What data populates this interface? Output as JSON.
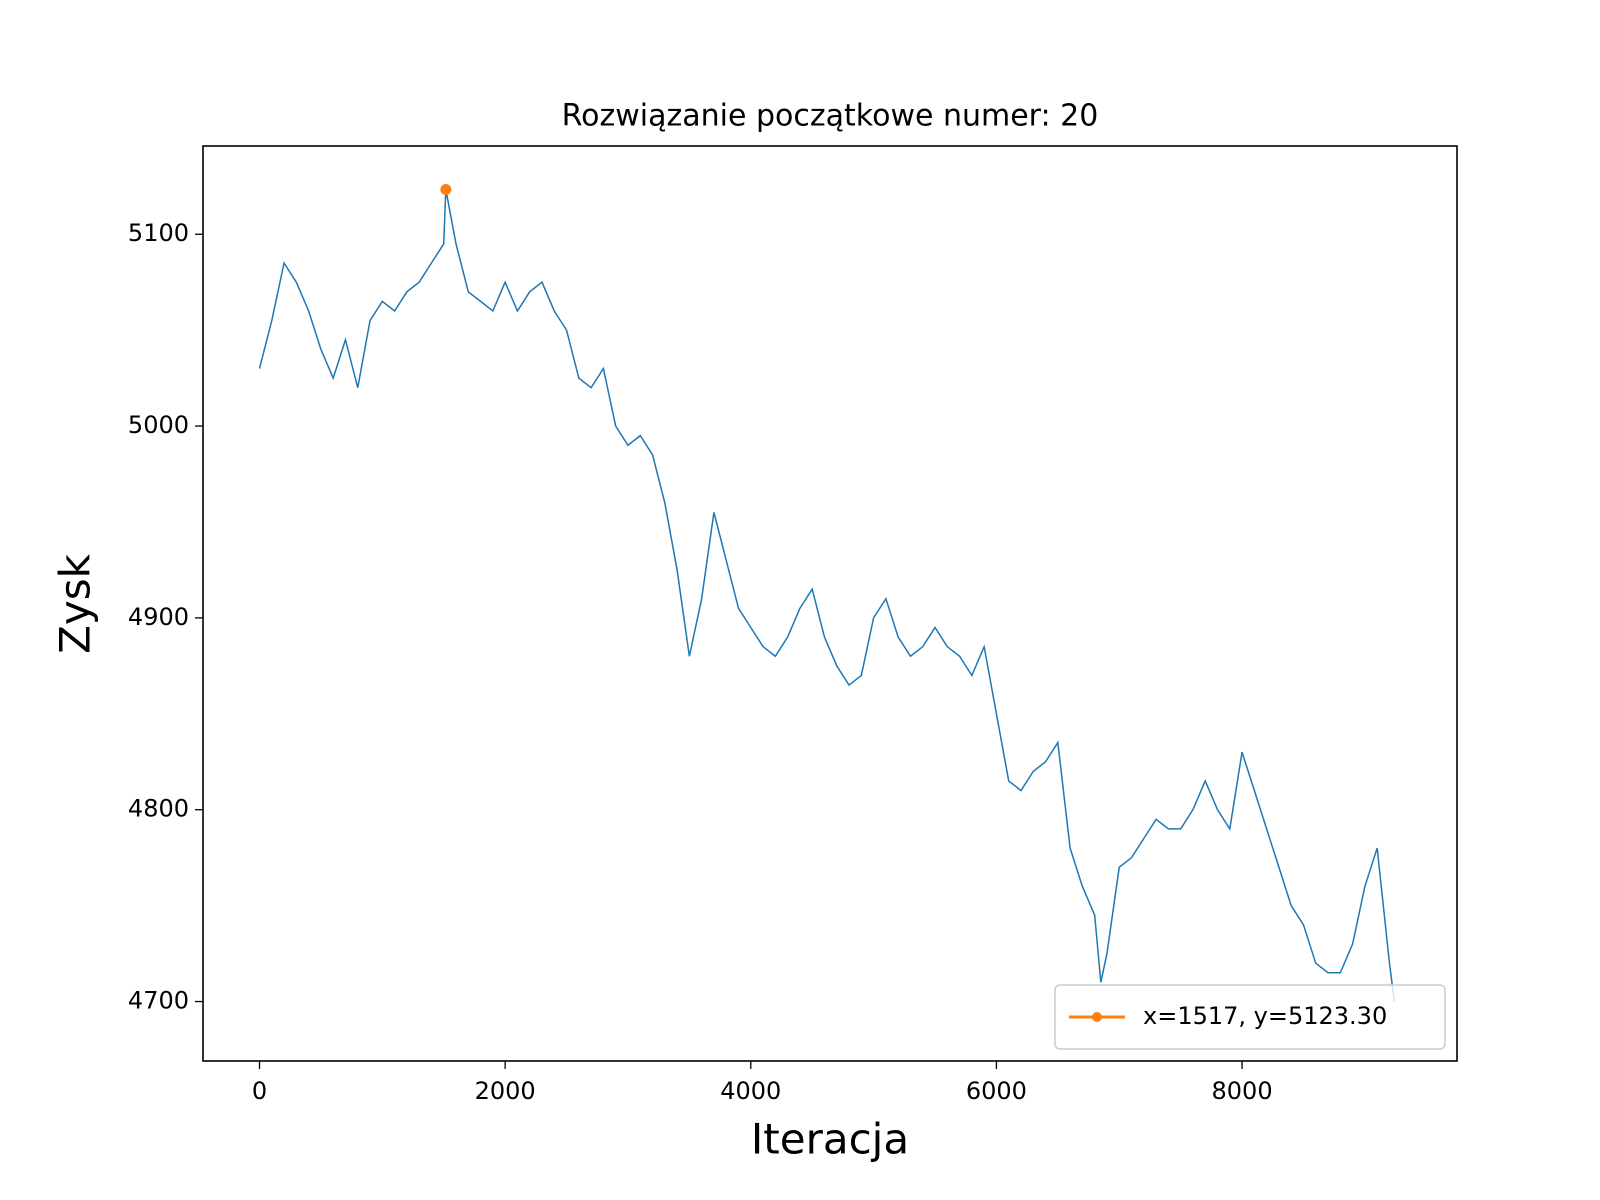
{
  "chart_data": {
    "type": "line",
    "title": "Rozwiązanie początkowe numer: 20",
    "xlabel": "Iteracja",
    "ylabel": "Zysk",
    "xlim": [
      -460,
      9750
    ],
    "ylim": [
      4669,
      5146
    ],
    "xticks": [
      0,
      2000,
      4000,
      6000,
      8000
    ],
    "yticks": [
      4700,
      4800,
      4900,
      5000,
      5100
    ],
    "legend": "lower right",
    "series": [
      {
        "color": "#1f77b4",
        "x": [
          0,
          100,
          200,
          300,
          400,
          500,
          600,
          700,
          800,
          900,
          1000,
          1100,
          1200,
          1300,
          1400,
          1500,
          1517,
          1600,
          1700,
          1800,
          1900,
          2000,
          2100,
          2200,
          2300,
          2400,
          2500,
          2600,
          2700,
          2800,
          2900,
          3000,
          3100,
          3200,
          3300,
          3400,
          3500,
          3600,
          3700,
          3800,
          3900,
          4000,
          4100,
          4200,
          4300,
          4400,
          4500,
          4600,
          4700,
          4800,
          4900,
          5000,
          5100,
          5200,
          5300,
          5400,
          5500,
          5600,
          5700,
          5800,
          5900,
          6000,
          6100,
          6200,
          6300,
          6400,
          6500,
          6600,
          6700,
          6800,
          6850,
          6900,
          7000,
          7100,
          7200,
          7300,
          7400,
          7500,
          7600,
          7700,
          7800,
          7900,
          8000,
          8100,
          8200,
          8300,
          8400,
          8500,
          8600,
          8700,
          8800,
          8900,
          9000,
          9100,
          9200,
          9240
        ],
        "values": [
          5030,
          5055,
          5085,
          5075,
          5060,
          5040,
          5025,
          5045,
          5020,
          5055,
          5065,
          5060,
          5070,
          5075,
          5085,
          5095,
          5123.3,
          5095,
          5070,
          5065,
          5060,
          5075,
          5060,
          5070,
          5075,
          5060,
          5050,
          5025,
          5020,
          5030,
          5000,
          4990,
          4995,
          4985,
          4960,
          4925,
          4880,
          4910,
          4955,
          4930,
          4905,
          4895,
          4885,
          4880,
          4890,
          4905,
          4915,
          4890,
          4875,
          4865,
          4870,
          4900,
          4910,
          4890,
          4880,
          4885,
          4895,
          4885,
          4880,
          4870,
          4885,
          4850,
          4815,
          4810,
          4820,
          4825,
          4835,
          4780,
          4760,
          4745,
          4710,
          4725,
          4770,
          4775,
          4785,
          4795,
          4790,
          4790,
          4800,
          4815,
          4800,
          4790,
          4830,
          4810,
          4790,
          4770,
          4750,
          4740,
          4720,
          4715,
          4715,
          4730,
          4760,
          4780,
          4720,
          4700
        ]
      },
      {
        "name": "x=1517, y=5123.30",
        "color": "#ff7f0e",
        "x": [
          1517
        ],
        "values": [
          5123.3
        ]
      }
    ]
  }
}
